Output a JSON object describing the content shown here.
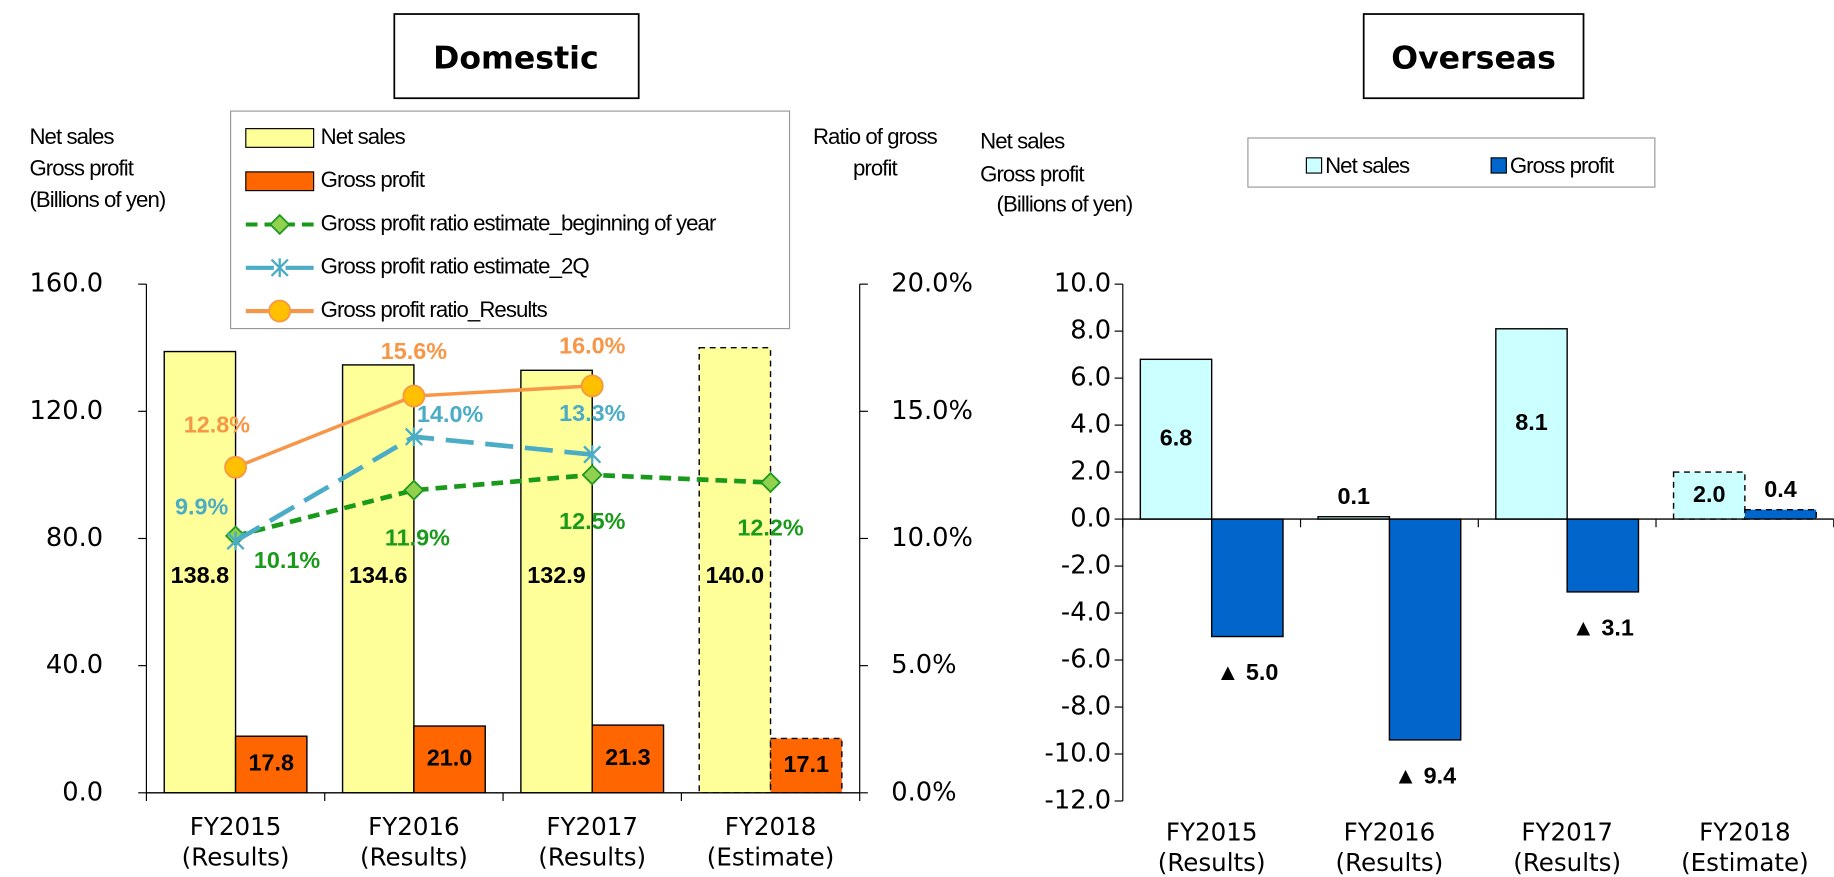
{
  "chart_data": [
    {
      "type": "combo",
      "title": "Domestic",
      "y_label": [
        "Net sales",
        "Gross profit",
        "(Billions of yen)"
      ],
      "y2_label": [
        "Ratio of gross",
        "profit"
      ],
      "categories": [
        [
          "FY2015",
          "(Results)"
        ],
        [
          "FY2016",
          "(Results)"
        ],
        [
          "FY2017",
          "(Results)"
        ],
        [
          "FY2018",
          "(Estimate)"
        ]
      ],
      "ylim": [
        0,
        160
      ],
      "yticks": [
        {
          "value": 0,
          "label": "0.0"
        },
        {
          "value": 40,
          "label": "40.0"
        },
        {
          "value": 80,
          "label": "80.0"
        },
        {
          "value": 120,
          "label": "120.0"
        },
        {
          "value": 160,
          "label": "160.0"
        }
      ],
      "y2lim": [
        0,
        20
      ],
      "y2ticks": [
        {
          "value": 0,
          "label": "0.0%"
        },
        {
          "value": 5,
          "label": "5.0%"
        },
        {
          "value": 10,
          "label": "10.0%"
        },
        {
          "value": 15,
          "label": "15.0%"
        },
        {
          "value": 20,
          "label": "20.0%"
        }
      ],
      "legend": "top",
      "series": [
        {
          "name": "Net sales",
          "type": "bar",
          "color": "#ffff99",
          "values": [
            138.8,
            134.6,
            132.9,
            140.0
          ],
          "value_labels": [
            "138.8",
            "134.6",
            "132.9",
            "140.0"
          ],
          "dashed": [
            false,
            false,
            false,
            true
          ]
        },
        {
          "name": "Gross profit",
          "type": "bar",
          "color": "#ff6600",
          "values": [
            17.8,
            21.0,
            21.3,
            17.1
          ],
          "value_labels": [
            "17.8",
            "21.0",
            "21.3",
            "17.1"
          ],
          "dashed": [
            false,
            false,
            false,
            true
          ]
        },
        {
          "name": "Gross profit ratio estimate_beginning of year",
          "type": "line",
          "axis": "y2",
          "color": "#1a9a1a",
          "marker": "diamond",
          "dash": "dashed",
          "values": [
            10.1,
            11.9,
            12.5,
            12.2
          ],
          "value_labels": [
            "10.1%",
            "11.9%",
            "12.5%",
            "12.2%"
          ]
        },
        {
          "name": "Gross profit ratio estimate_2Q",
          "type": "line",
          "axis": "y2",
          "color": "#4bacc6",
          "marker": "star",
          "dash": "long-dashed",
          "values": [
            9.9,
            14.0,
            13.3,
            null
          ],
          "value_labels": [
            "9.9%",
            "14.0%",
            "13.3%",
            null
          ]
        },
        {
          "name": "Gross profit ratio_Results",
          "type": "line",
          "axis": "y2",
          "color": "#f79646",
          "marker": "circle",
          "dash": "solid",
          "values": [
            12.8,
            15.6,
            16.0,
            null
          ],
          "value_labels": [
            "12.8%",
            "15.6%",
            "16.0%",
            null
          ]
        }
      ]
    },
    {
      "type": "bar",
      "title": "Overseas",
      "y_label": [
        "Net sales",
        "Gross profit",
        "(Billions of yen)"
      ],
      "categories": [
        [
          "FY2015",
          "(Results)"
        ],
        [
          "FY2016",
          "(Results)"
        ],
        [
          "FY2017",
          "(Results)"
        ],
        [
          "FY2018",
          "(Estimate)"
        ]
      ],
      "ylim": [
        -12,
        10
      ],
      "yticks": [
        {
          "value": -12,
          "label": "-12.0"
        },
        {
          "value": -10,
          "label": "-10.0"
        },
        {
          "value": -8,
          "label": "-8.0"
        },
        {
          "value": -6,
          "label": "-6.0"
        },
        {
          "value": -4,
          "label": "-4.0"
        },
        {
          "value": -2,
          "label": "-2.0"
        },
        {
          "value": 0,
          "label": "0.0"
        },
        {
          "value": 2,
          "label": "2.0"
        },
        {
          "value": 4,
          "label": "4.0"
        },
        {
          "value": 6,
          "label": "6.0"
        },
        {
          "value": 8,
          "label": "8.0"
        },
        {
          "value": 10,
          "label": "10.0"
        }
      ],
      "legend": "top",
      "series": [
        {
          "name": "Net sales",
          "type": "bar",
          "color": "#ccffff",
          "values": [
            6.8,
            0.1,
            8.1,
            2.0
          ],
          "value_labels": [
            "6.8",
            "0.1",
            "8.1",
            "2.0"
          ],
          "dashed": [
            false,
            false,
            false,
            true
          ]
        },
        {
          "name": "Gross profit",
          "type": "bar",
          "color": "#0066cc",
          "values": [
            -5.0,
            -9.4,
            -3.1,
            0.4
          ],
          "value_labels": [
            "▲ 5.0",
            "▲ 9.4",
            "▲ 3.1",
            "0.4"
          ],
          "dashed": [
            false,
            false,
            false,
            true
          ]
        }
      ]
    }
  ]
}
